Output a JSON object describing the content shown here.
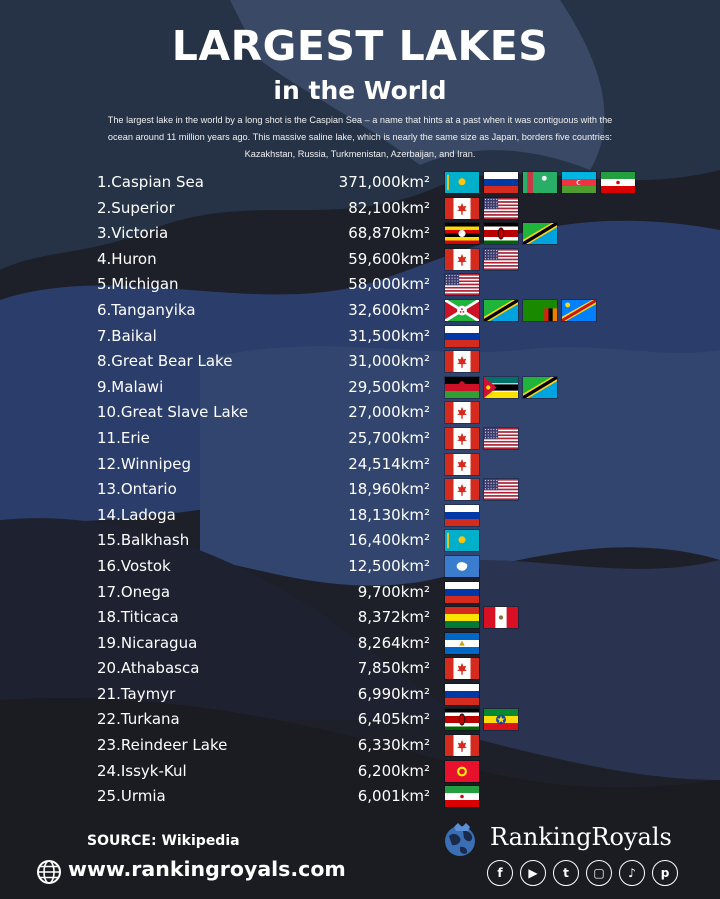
{
  "header": {
    "title": "LARGEST LAKES",
    "subtitle": "in the World",
    "intro_lines": [
      "The largest lake in the world by a long shot is the Caspian Sea – a name that hints at a past when it was contiguous with the",
      "ocean around 11 million years ago. This massive saline lake, which is nearly the same size as Japan, borders five countries:",
      "Kazakhstan, Russia, Turkmenistan, Azerbaijan, and Iran."
    ]
  },
  "lakes": [
    {
      "name": "1.Caspian Sea",
      "area": "371,000km²",
      "flags": [
        "kazakhstan-flag",
        "russia-flag",
        "turkmenistan-flag",
        "azerbaijan-flag",
        "iran-flag"
      ]
    },
    {
      "name": "2.Superior",
      "area": "82,100km²",
      "flags": [
        "canada-flag",
        "usa-flag"
      ]
    },
    {
      "name": "3.Victoria",
      "area": "68,870km²",
      "flags": [
        "uganda-flag",
        "kenya-flag",
        "tanzania-flag"
      ]
    },
    {
      "name": "4.Huron",
      "area": "59,600km²",
      "flags": [
        "canada-flag",
        "usa-flag"
      ]
    },
    {
      "name": "5.Michigan",
      "area": "58,000km²",
      "flags": [
        "usa-flag"
      ]
    },
    {
      "name": "6.Tanganyika",
      "area": "32,600km²",
      "flags": [
        "burundi-flag",
        "tanzania-flag",
        "zambia-flag",
        "dr-congo-flag"
      ]
    },
    {
      "name": "7.Baikal",
      "area": "31,500km²",
      "flags": [
        "russia-flag"
      ]
    },
    {
      "name": "8.Great Bear Lake",
      "area": "31,000km²",
      "flags": [
        "canada-flag"
      ]
    },
    {
      "name": "9.Malawi",
      "area": "29,500km²",
      "flags": [
        "malawi-flag",
        "mozambique-flag",
        "tanzania-flag"
      ]
    },
    {
      "name": "10.Great Slave Lake",
      "area": "27,000km²",
      "flags": [
        "canada-flag"
      ]
    },
    {
      "name": "11.Erie",
      "area": "25,700km²",
      "flags": [
        "canada-flag",
        "usa-flag"
      ]
    },
    {
      "name": "12.Winnipeg",
      "area": "24,514km²",
      "flags": [
        "canada-flag"
      ]
    },
    {
      "name": "13.Ontario",
      "area": "18,960km²",
      "flags": [
        "canada-flag",
        "usa-flag"
      ]
    },
    {
      "name": "14.Ladoga",
      "area": "18,130km²",
      "flags": [
        "russia-flag"
      ]
    },
    {
      "name": "15.Balkhash",
      "area": "16,400km²",
      "flags": [
        "kazakhstan-flag"
      ]
    },
    {
      "name": "16.Vostok",
      "area": "12,500km²",
      "flags": [
        "antarctica-flag"
      ]
    },
    {
      "name": "17.Onega",
      "area": "9,700km²",
      "flags": [
        "russia-flag"
      ]
    },
    {
      "name": "18.Titicaca",
      "area": "8,372km²",
      "flags": [
        "bolivia-flag",
        "peru-flag"
      ]
    },
    {
      "name": "19.Nicaragua",
      "area": "8,264km²",
      "flags": [
        "nicaragua-flag"
      ]
    },
    {
      "name": "20.Athabasca",
      "area": "7,850km²",
      "flags": [
        "canada-flag"
      ]
    },
    {
      "name": "21.Taymyr",
      "area": "6,990km²",
      "flags": [
        "russia-flag"
      ]
    },
    {
      "name": "22.Turkana",
      "area": "6,405km²",
      "flags": [
        "kenya-flag",
        "ethiopia-flag"
      ]
    },
    {
      "name": "23.Reindeer Lake",
      "area": "6,330km²",
      "flags": [
        "canada-flag"
      ]
    },
    {
      "name": "24.Issyk-Kul",
      "area": "6,200km²",
      "flags": [
        "kyrgyzstan-flag"
      ]
    },
    {
      "name": "25.Urmia",
      "area": "6,001km²",
      "flags": [
        "iran-flag"
      ]
    }
  ],
  "footer": {
    "source": "SOURCE: Wikipedia",
    "website": "www.rankingroyals.com",
    "website_icon": "globe-icon",
    "brand": "RankingRoyals",
    "brand_logo": "globe-logo-icon",
    "socials": [
      {
        "icon": "facebook-icon",
        "glyph": "f"
      },
      {
        "icon": "youtube-icon",
        "glyph": "▶"
      },
      {
        "icon": "twitter-icon",
        "glyph": "t"
      },
      {
        "icon": "instagram-icon",
        "glyph": "▢"
      },
      {
        "icon": "tiktok-icon",
        "glyph": "♪"
      },
      {
        "icon": "pinterest-icon",
        "glyph": "p"
      }
    ]
  },
  "colors": {
    "background_dark": "#1b1e26",
    "background_blue": "#2c3f66",
    "background_slate": "#3e4d66",
    "text": "#ffffff"
  }
}
